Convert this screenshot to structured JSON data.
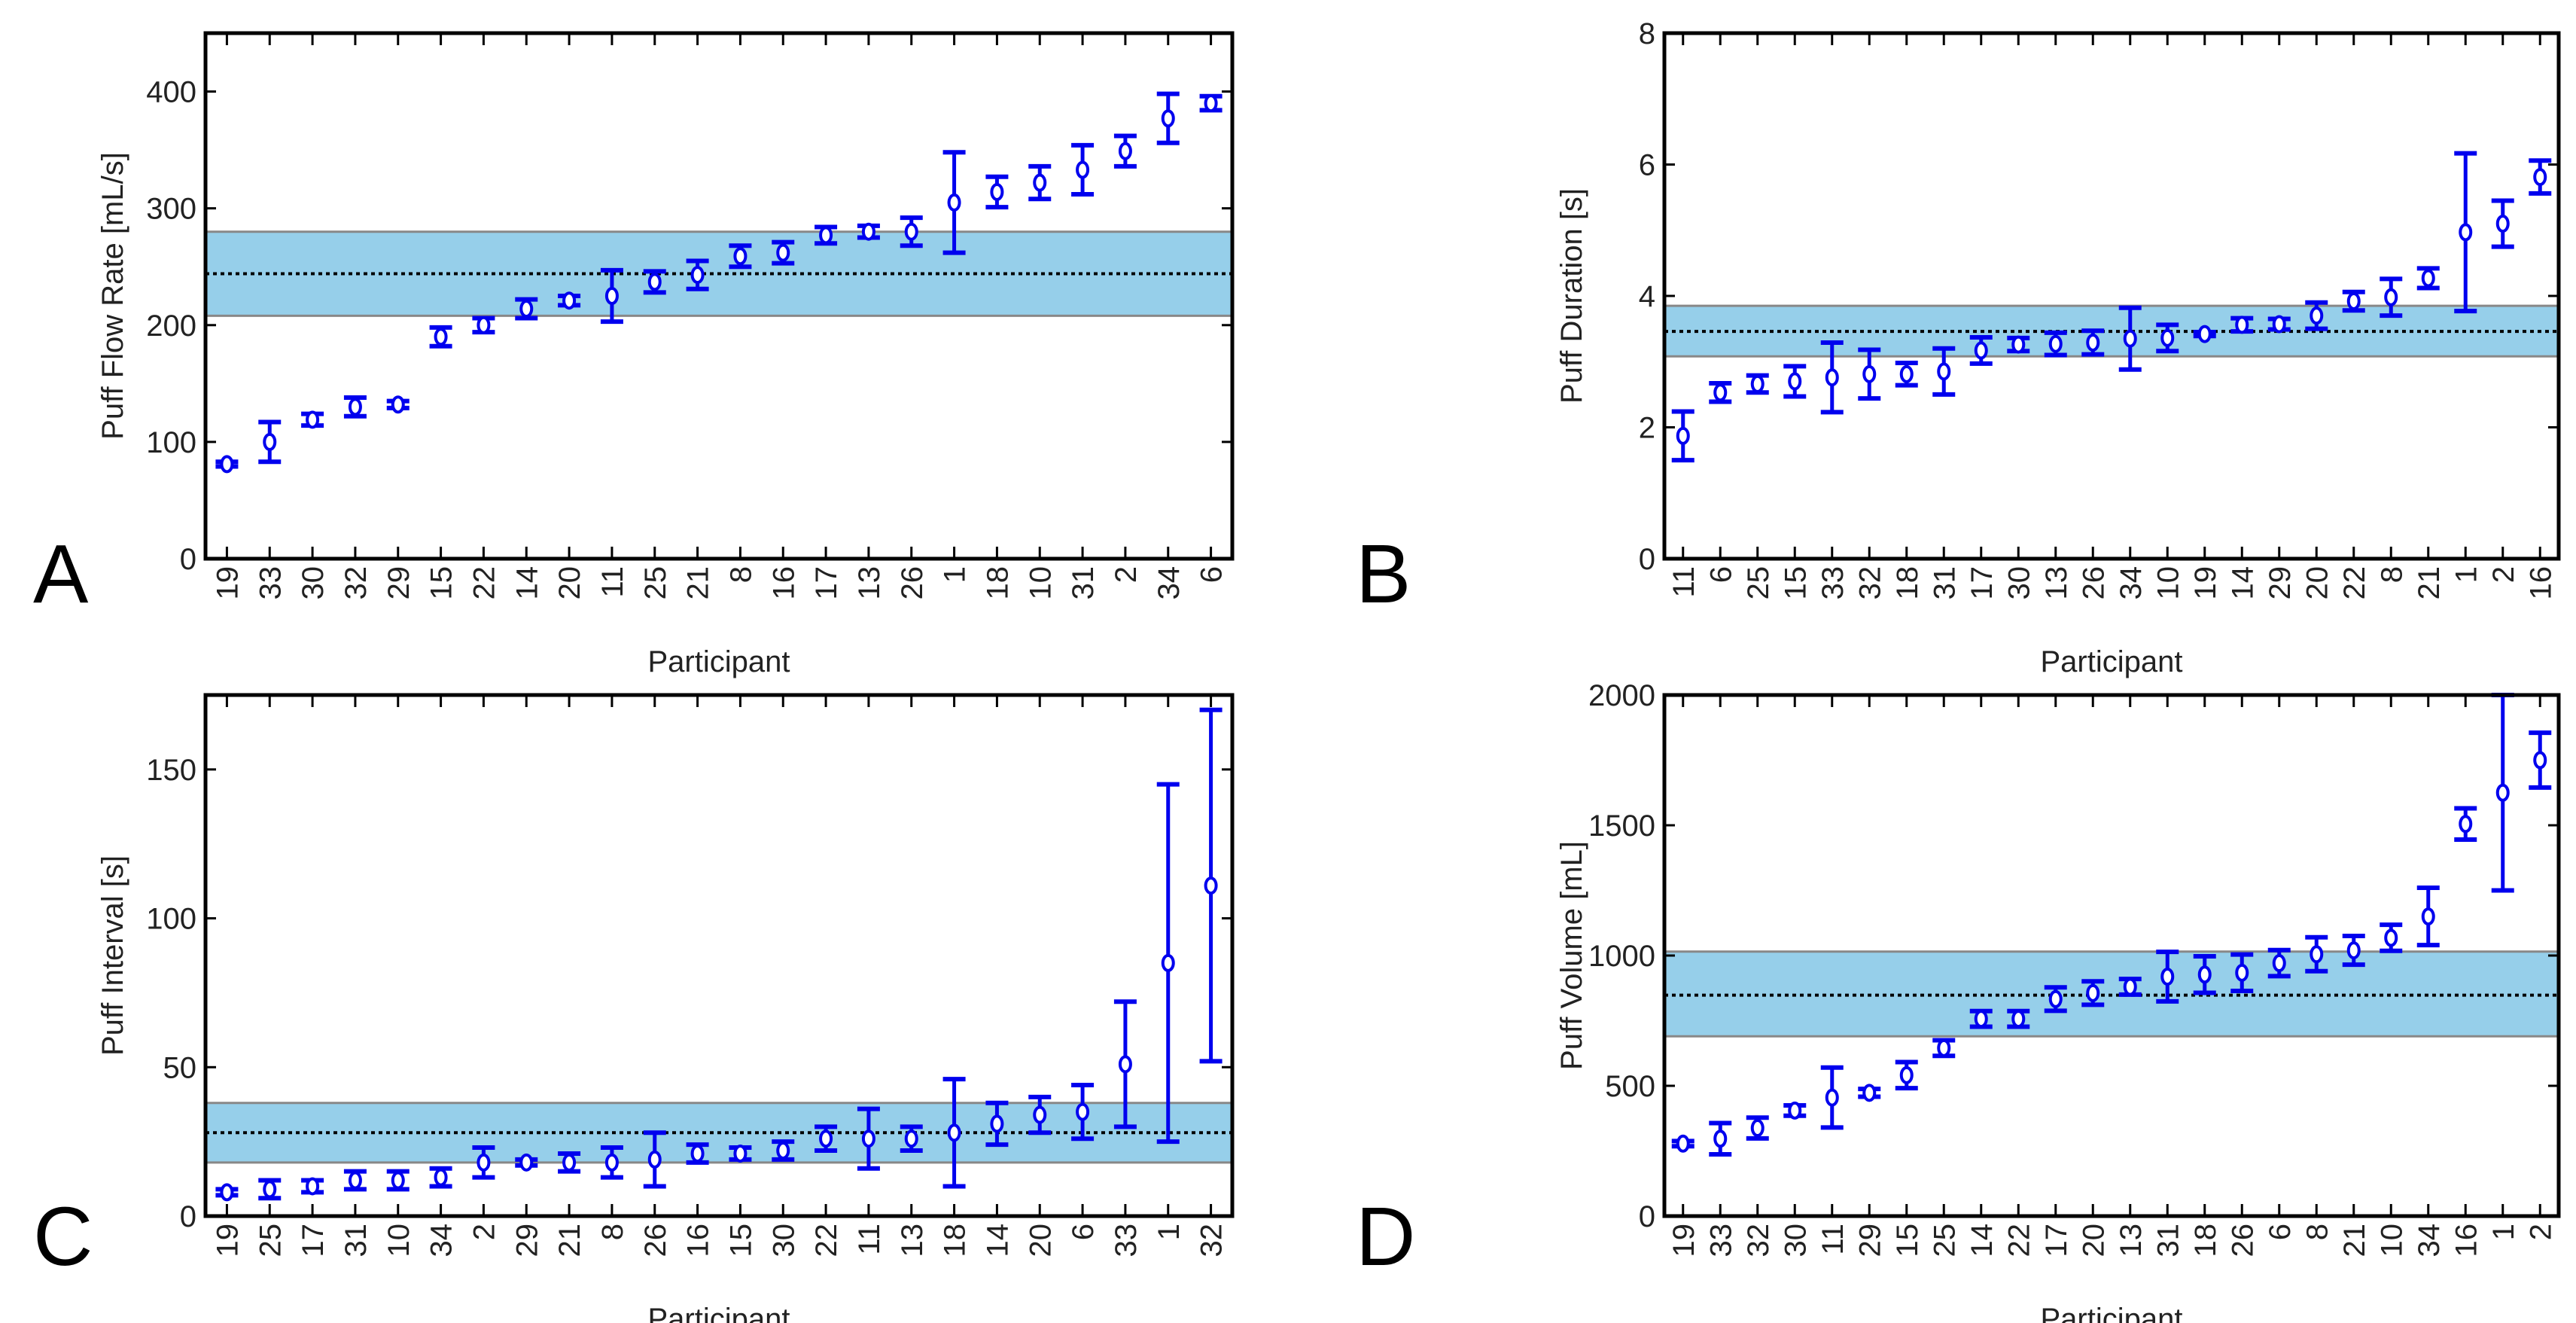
{
  "chart_data": [
    {
      "type": "scatter",
      "panel": "A",
      "xlabel": "Participant",
      "ylabel": "Puff Flow Rate [mL/s]",
      "ylim": [
        0,
        450
      ],
      "yticks": [
        0,
        100,
        200,
        300,
        400
      ],
      "categories": [
        "19",
        "33",
        "30",
        "32",
        "29",
        "15",
        "22",
        "14",
        "20",
        "11",
        "25",
        "21",
        "8",
        "16",
        "17",
        "13",
        "26",
        "1",
        "18",
        "10",
        "31",
        "2",
        "34",
        "6"
      ],
      "values": [
        81,
        100,
        119,
        130,
        132,
        190,
        200,
        214,
        221,
        225,
        237,
        243,
        259,
        262,
        277,
        280,
        280,
        305,
        314,
        322,
        333,
        349,
        377,
        390
      ],
      "errors": [
        2,
        17,
        5,
        8,
        3,
        8,
        6,
        8,
        4,
        22,
        9,
        12,
        9,
        9,
        7,
        5,
        12,
        43,
        13,
        14,
        21,
        13,
        21,
        6
      ],
      "band": {
        "low": 208,
        "high": 280,
        "mean": 244
      }
    },
    {
      "type": "scatter",
      "panel": "B",
      "xlabel": "Participant",
      "ylabel": "Puff Duration [s]",
      "ylim": [
        0,
        8
      ],
      "yticks": [
        0,
        2,
        4,
        6,
        8
      ],
      "categories": [
        "11",
        "6",
        "25",
        "15",
        "33",
        "32",
        "18",
        "31",
        "17",
        "30",
        "13",
        "26",
        "34",
        "10",
        "19",
        "14",
        "29",
        "20",
        "22",
        "8",
        "21",
        "1",
        "2",
        "16"
      ],
      "values": [
        1.87,
        2.53,
        2.66,
        2.7,
        2.76,
        2.81,
        2.81,
        2.85,
        3.17,
        3.26,
        3.27,
        3.29,
        3.35,
        3.36,
        3.42,
        3.56,
        3.57,
        3.7,
        3.92,
        3.98,
        4.27,
        4.97,
        5.1,
        5.81
      ],
      "errors": [
        0.37,
        0.14,
        0.13,
        0.23,
        0.53,
        0.37,
        0.17,
        0.35,
        0.2,
        0.1,
        0.17,
        0.18,
        0.47,
        0.2,
        0.03,
        0.1,
        0.08,
        0.2,
        0.14,
        0.28,
        0.15,
        1.2,
        0.35,
        0.25
      ],
      "band": {
        "low": 3.08,
        "high": 3.85,
        "mean": 3.46
      }
    },
    {
      "type": "scatter",
      "panel": "C",
      "xlabel": "Participant",
      "ylabel": "Puff Interval [s]",
      "ylim": [
        0,
        175
      ],
      "yticks": [
        0,
        50,
        100,
        150
      ],
      "categories": [
        "19",
        "25",
        "17",
        "31",
        "10",
        "34",
        "2",
        "29",
        "21",
        "8",
        "26",
        "16",
        "15",
        "30",
        "22",
        "11",
        "13",
        "18",
        "14",
        "20",
        "6",
        "33",
        "1",
        "32"
      ],
      "values": [
        8,
        9,
        10,
        12,
        12,
        13,
        18,
        18,
        18,
        18,
        19,
        21,
        21,
        22,
        26,
        26,
        26,
        28,
        31,
        34,
        35,
        51,
        85,
        111
      ],
      "errors": [
        1,
        3,
        2,
        3,
        3,
        3,
        5,
        1,
        3,
        5,
        9,
        3,
        2,
        3,
        4,
        10,
        4,
        18,
        7,
        6,
        9,
        21,
        60,
        59
      ],
      "band": {
        "low": 18,
        "high": 38,
        "mean": 28
      }
    },
    {
      "type": "scatter",
      "panel": "D",
      "xlabel": "Participant",
      "ylabel": "Puff Volume [mL]",
      "ylim": [
        0,
        2000
      ],
      "yticks": [
        0,
        500,
        1000,
        1500,
        2000
      ],
      "categories": [
        "19",
        "33",
        "32",
        "30",
        "11",
        "29",
        "15",
        "25",
        "14",
        "22",
        "17",
        "20",
        "13",
        "31",
        "18",
        "26",
        "6",
        "8",
        "21",
        "10",
        "34",
        "16",
        "1",
        "2"
      ],
      "values": [
        278,
        297,
        338,
        405,
        455,
        473,
        541,
        645,
        757,
        757,
        833,
        856,
        880,
        919,
        927,
        934,
        971,
        1005,
        1020,
        1068,
        1150,
        1505,
        1625,
        1750
      ],
      "errors": [
        10,
        60,
        40,
        20,
        115,
        15,
        50,
        30,
        30,
        30,
        45,
        45,
        30,
        95,
        70,
        70,
        50,
        65,
        55,
        50,
        110,
        60,
        375,
        105
      ],
      "band": {
        "low": 690,
        "high": 1015,
        "mean": 848
      }
    }
  ],
  "colors": {
    "marker": "#0000ee",
    "band": "#96cfea",
    "band_edge": "#888888",
    "mean_line": "#000000"
  }
}
